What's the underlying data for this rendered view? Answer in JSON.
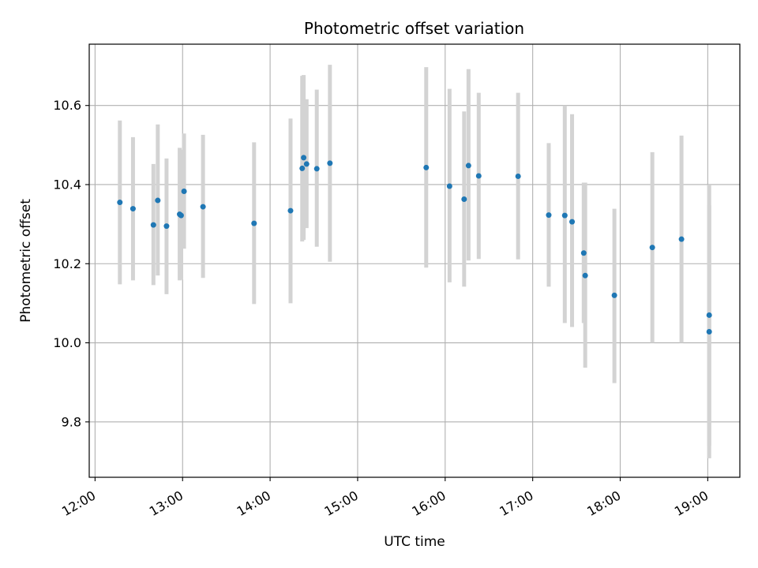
{
  "chart_data": {
    "type": "scatter",
    "title": "Photometric offset variation",
    "xlabel": "UTC time",
    "ylabel": "Photometric offset",
    "grid": true,
    "xlim": [
      "11:56",
      "19:22"
    ],
    "ylim": [
      9.66,
      10.755
    ],
    "x_ticks": [
      "12:00",
      "13:00",
      "14:00",
      "15:00",
      "16:00",
      "17:00",
      "18:00",
      "19:00"
    ],
    "y_ticks": [
      9.8,
      10.0,
      10.2,
      10.4,
      10.6
    ],
    "y_tick_labels": [
      "9.8",
      "10.0",
      "10.2",
      "10.4",
      "10.6"
    ],
    "colors": {
      "point": "#1f77b4",
      "errorbar": "#d3d3d3",
      "grid": "#b0b0b0"
    },
    "series": [
      {
        "points": [
          {
            "x": "12:17",
            "y": 10.355,
            "ylow": 10.148,
            "yhigh": 10.562
          },
          {
            "x": "12:26",
            "y": 10.339,
            "ylow": 10.158,
            "yhigh": 10.52
          },
          {
            "x": "12:40",
            "y": 10.298,
            "ylow": 10.146,
            "yhigh": 10.452
          },
          {
            "x": "12:43",
            "y": 10.36,
            "ylow": 10.17,
            "yhigh": 10.552
          },
          {
            "x": "12:49",
            "y": 10.295,
            "ylow": 10.123,
            "yhigh": 10.466
          },
          {
            "x": "12:58",
            "y": 10.325,
            "ylow": 10.158,
            "yhigh": 10.493
          },
          {
            "x": "12:59",
            "y": 10.322,
            "ylow": 10.16,
            "yhigh": 10.488
          },
          {
            "x": "13:01",
            "y": 10.383,
            "ylow": 10.238,
            "yhigh": 10.529
          },
          {
            "x": "13:14",
            "y": 10.344,
            "ylow": 10.164,
            "yhigh": 10.526
          },
          {
            "x": "13:49",
            "y": 10.302,
            "ylow": 10.098,
            "yhigh": 10.507
          },
          {
            "x": "14:14",
            "y": 10.334,
            "ylow": 10.1,
            "yhigh": 10.567
          },
          {
            "x": "14:22",
            "y": 10.441,
            "ylow": 10.256,
            "yhigh": 10.675
          },
          {
            "x": "14:23",
            "y": 10.468,
            "ylow": 10.26,
            "yhigh": 10.677
          },
          {
            "x": "14:25",
            "y": 10.452,
            "ylow": 10.29,
            "yhigh": 10.616
          },
          {
            "x": "14:32",
            "y": 10.44,
            "ylow": 10.243,
            "yhigh": 10.64
          },
          {
            "x": "14:41",
            "y": 10.454,
            "ylow": 10.205,
            "yhigh": 10.703
          },
          {
            "x": "15:47",
            "y": 10.443,
            "ylow": 10.19,
            "yhigh": 10.697
          },
          {
            "x": "16:03",
            "y": 10.396,
            "ylow": 10.153,
            "yhigh": 10.642
          },
          {
            "x": "16:13",
            "y": 10.363,
            "ylow": 10.142,
            "yhigh": 10.585
          },
          {
            "x": "16:16",
            "y": 10.448,
            "ylow": 10.208,
            "yhigh": 10.692
          },
          {
            "x": "16:23",
            "y": 10.422,
            "ylow": 10.212,
            "yhigh": 10.632
          },
          {
            "x": "16:50",
            "y": 10.421,
            "ylow": 10.211,
            "yhigh": 10.632
          },
          {
            "x": "17:11",
            "y": 10.323,
            "ylow": 10.142,
            "yhigh": 10.505
          },
          {
            "x": "17:22",
            "y": 10.322,
            "ylow": 10.05,
            "yhigh": 10.6
          },
          {
            "x": "17:27",
            "y": 10.306,
            "ylow": 10.04,
            "yhigh": 10.578
          },
          {
            "x": "17:35",
            "y": 10.227,
            "ylow": 10.05,
            "yhigh": 10.405
          },
          {
            "x": "17:36",
            "y": 10.17,
            "ylow": 9.937,
            "yhigh": 10.405
          },
          {
            "x": "17:56",
            "y": 10.12,
            "ylow": 9.898,
            "yhigh": 10.339
          },
          {
            "x": "18:22",
            "y": 10.241,
            "ylow": 10.0,
            "yhigh": 10.482
          },
          {
            "x": "18:42",
            "y": 10.262,
            "ylow": 10.0,
            "yhigh": 10.524
          },
          {
            "x": "19:01",
            "y": 10.07,
            "ylow": 9.74,
            "yhigh": 10.4
          },
          {
            "x": "19:01",
            "y": 10.028,
            "ylow": 9.708,
            "yhigh": 10.348
          }
        ]
      }
    ]
  }
}
